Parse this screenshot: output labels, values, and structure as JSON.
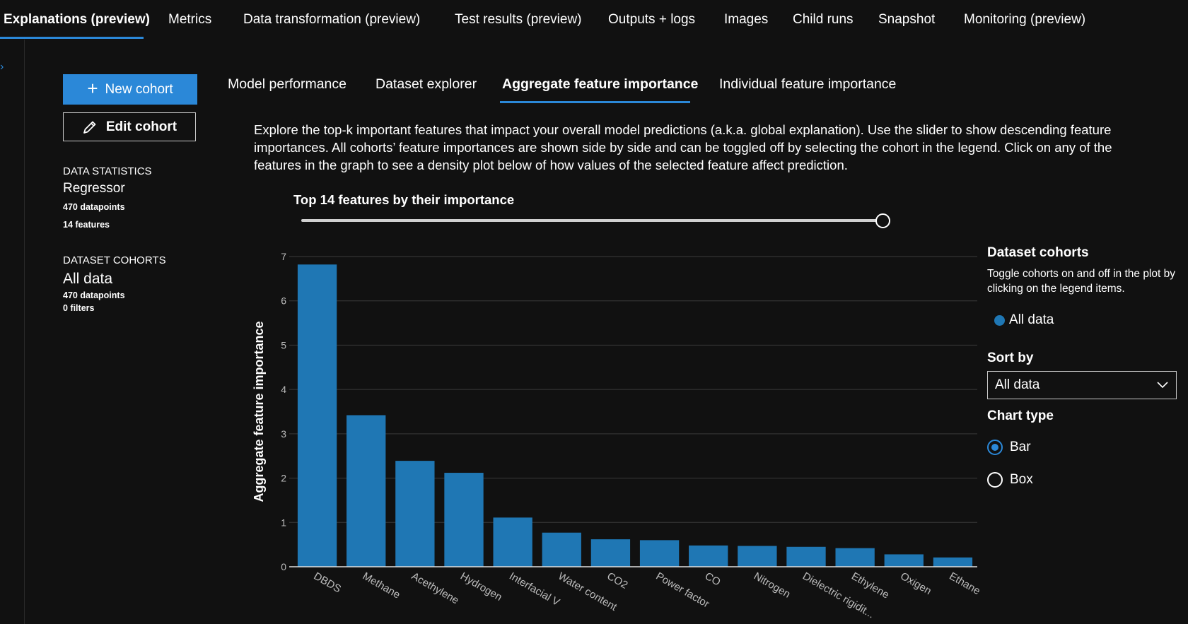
{
  "top_nav": {
    "tabs": [
      {
        "label": "Explanations (preview)",
        "active": true
      },
      {
        "label": "Metrics"
      },
      {
        "label": "Data transformation (preview)"
      },
      {
        "label": "Test results (preview)"
      },
      {
        "label": "Outputs + logs"
      },
      {
        "label": "Images"
      },
      {
        "label": "Child runs"
      },
      {
        "label": "Snapshot"
      },
      {
        "label": "Monitoring (preview)"
      }
    ]
  },
  "cohort_buttons": {
    "new_cohort": "New cohort",
    "edit_cohort": "Edit cohort"
  },
  "data_statistics": {
    "heading": "DATA STATISTICS",
    "model_type": "Regressor",
    "datapoints": "470 datapoints",
    "features": "14 features"
  },
  "dataset_cohorts": {
    "heading": "DATASET COHORTS",
    "name": "All data",
    "datapoints": "470 datapoints",
    "filters": "0 filters"
  },
  "sub_tabs": [
    {
      "label": "Model performance"
    },
    {
      "label": "Dataset explorer"
    },
    {
      "label": "Aggregate feature importance",
      "active": true
    },
    {
      "label": "Individual feature importance"
    }
  ],
  "description": "Explore the top-k important features that impact your overall model predictions (a.k.a. global explanation). Use the slider to show descending feature importances. All cohorts’ feature importances are shown side by side and can be toggled off by selecting the cohort in the legend. Click on any of the features in the graph to see a density plot below of how values of the selected feature affect prediction.",
  "slider": {
    "label": "Top 14 features by their importance",
    "value": 14,
    "max": 14
  },
  "legend": {
    "title": "Dataset cohorts",
    "description": "Toggle cohorts on and off in the plot by clicking on the legend items.",
    "items": [
      {
        "label": "All data",
        "color": "#1f77b4"
      }
    ]
  },
  "sort_by": {
    "title": "Sort by",
    "selected": "All data"
  },
  "chart_type": {
    "title": "Chart type",
    "options": [
      {
        "label": "Bar",
        "checked": true
      },
      {
        "label": "Box",
        "checked": false
      }
    ]
  },
  "chart_data": {
    "type": "bar",
    "ylabel": "Aggregate feature importance",
    "xlabel": "",
    "ylim": [
      0,
      7
    ],
    "yticks": [
      0,
      1,
      2,
      3,
      4,
      5,
      6,
      7
    ],
    "grid": true,
    "bar_color": "#1f77b4",
    "categories": [
      "DBDS",
      "Methane",
      "Acethylene",
      "Hydrogen",
      "Interfacial V",
      "Water content",
      "CO2",
      "Power factor",
      "CO",
      "Nitrogen",
      "Dielectric rigidit...",
      "Ethylene",
      "Oxigen",
      "Ethane"
    ],
    "series": [
      {
        "values": [
          6.82,
          3.42,
          2.39,
          2.12,
          1.11,
          0.77,
          0.62,
          0.6,
          0.48,
          0.47,
          0.45,
          0.42,
          0.28,
          0.21
        ]
      }
    ]
  },
  "colors": {
    "accent": "#2b88d8",
    "background": "#111111",
    "bar": "#1f77b4"
  }
}
